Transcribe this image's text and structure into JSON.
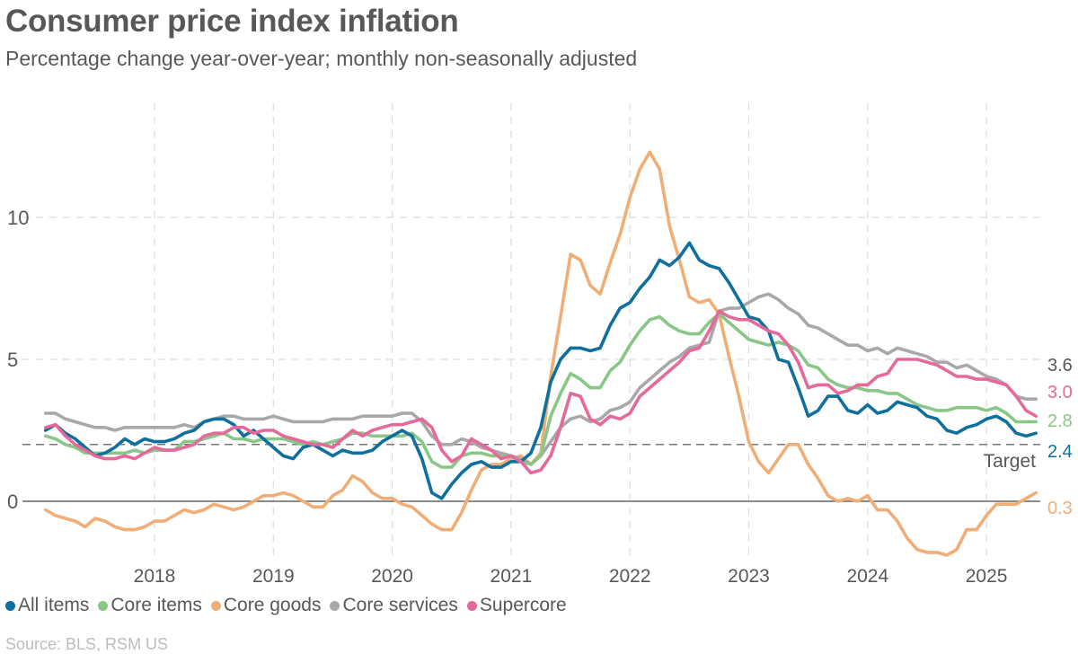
{
  "title": "Consumer price index inflation",
  "subtitle": "Percentage change year-over-year; monthly non-seasonally adjusted",
  "source": "Source: BLS, RSM US",
  "chart_data": {
    "type": "line",
    "title": "Consumer price index inflation",
    "subtitle": "Percentage change year-over-year; monthly non-seasonally adjusted",
    "xlabel": "",
    "ylabel": "",
    "ylim": [
      -2.3,
      13
    ],
    "y_ticks": [
      "0",
      "5",
      "10"
    ],
    "x_ticks": [
      "2018",
      "2019",
      "2020",
      "2021",
      "2022",
      "2023",
      "2024",
      "2025"
    ],
    "grid": "dashed",
    "legend": "bottom",
    "target": {
      "label": "Target",
      "value": 2
    },
    "x": [
      "2017-01",
      "2017-02",
      "2017-03",
      "2017-04",
      "2017-05",
      "2017-06",
      "2017-07",
      "2017-08",
      "2017-09",
      "2017-10",
      "2017-11",
      "2017-12",
      "2018-01",
      "2018-02",
      "2018-03",
      "2018-04",
      "2018-05",
      "2018-06",
      "2018-07",
      "2018-08",
      "2018-09",
      "2018-10",
      "2018-11",
      "2018-12",
      "2019-01",
      "2019-02",
      "2019-03",
      "2019-04",
      "2019-05",
      "2019-06",
      "2019-07",
      "2019-08",
      "2019-09",
      "2019-10",
      "2019-11",
      "2019-12",
      "2020-01",
      "2020-02",
      "2020-03",
      "2020-04",
      "2020-05",
      "2020-06",
      "2020-07",
      "2020-08",
      "2020-09",
      "2020-10",
      "2020-11",
      "2020-12",
      "2021-01",
      "2021-02",
      "2021-03",
      "2021-04",
      "2021-05",
      "2021-06",
      "2021-07",
      "2021-08",
      "2021-09",
      "2021-10",
      "2021-11",
      "2021-12",
      "2022-01",
      "2022-02",
      "2022-03",
      "2022-04",
      "2022-05",
      "2022-06",
      "2022-07",
      "2022-08",
      "2022-09",
      "2022-10",
      "2022-11",
      "2022-12",
      "2023-01",
      "2023-02",
      "2023-03",
      "2023-04",
      "2023-05",
      "2023-06",
      "2023-07",
      "2023-08",
      "2023-09",
      "2023-10",
      "2023-11",
      "2023-12",
      "2024-01",
      "2024-02",
      "2024-03",
      "2024-04",
      "2024-05",
      "2024-06",
      "2024-07",
      "2024-08",
      "2024-09",
      "2024-10",
      "2024-11",
      "2024-12",
      "2025-01",
      "2025-02",
      "2025-03",
      "2025-04",
      "2025-05"
    ],
    "series": [
      {
        "name": "All items",
        "color": "#0f6f9d",
        "end_label": "2.4",
        "values": [
          2.5,
          2.7,
          2.4,
          2.2,
          1.9,
          1.6,
          1.7,
          1.9,
          2.2,
          2.0,
          2.2,
          2.1,
          2.1,
          2.2,
          2.4,
          2.5,
          2.8,
          2.9,
          2.9,
          2.7,
          2.3,
          2.5,
          2.2,
          1.9,
          1.6,
          1.5,
          1.9,
          2.0,
          1.8,
          1.6,
          1.8,
          1.7,
          1.7,
          1.8,
          2.1,
          2.3,
          2.5,
          2.3,
          1.5,
          0.3,
          0.1,
          0.6,
          1.0,
          1.3,
          1.4,
          1.2,
          1.2,
          1.4,
          1.4,
          1.7,
          2.6,
          4.2,
          5.0,
          5.4,
          5.4,
          5.3,
          5.4,
          6.2,
          6.8,
          7.0,
          7.5,
          7.9,
          8.5,
          8.3,
          8.6,
          9.1,
          8.5,
          8.3,
          8.2,
          7.7,
          7.1,
          6.5,
          6.4,
          6.0,
          5.0,
          4.9,
          4.0,
          3.0,
          3.2,
          3.7,
          3.7,
          3.2,
          3.1,
          3.4,
          3.1,
          3.2,
          3.5,
          3.4,
          3.3,
          3.0,
          2.9,
          2.5,
          2.4,
          2.6,
          2.7,
          2.9,
          3.0,
          2.8,
          2.4,
          2.3,
          2.4
        ]
      },
      {
        "name": "Core items",
        "color": "#88c786",
        "end_label": "2.8",
        "values": [
          2.3,
          2.2,
          2.0,
          1.9,
          1.7,
          1.7,
          1.7,
          1.7,
          1.7,
          1.8,
          1.7,
          1.8,
          1.8,
          1.8,
          2.1,
          2.1,
          2.2,
          2.3,
          2.4,
          2.2,
          2.2,
          2.1,
          2.2,
          2.2,
          2.2,
          2.1,
          2.0,
          2.1,
          2.0,
          2.1,
          2.2,
          2.4,
          2.4,
          2.3,
          2.3,
          2.3,
          2.3,
          2.4,
          2.1,
          1.4,
          1.2,
          1.2,
          1.6,
          1.7,
          1.7,
          1.6,
          1.6,
          1.6,
          1.4,
          1.3,
          1.6,
          3.0,
          3.8,
          4.5,
          4.3,
          4.0,
          4.0,
          4.6,
          4.9,
          5.5,
          6.0,
          6.4,
          6.5,
          6.2,
          6.0,
          5.9,
          5.9,
          6.3,
          6.6,
          6.3,
          6.0,
          5.7,
          5.6,
          5.5,
          5.6,
          5.5,
          5.3,
          4.8,
          4.7,
          4.3,
          4.1,
          4.0,
          4.0,
          3.9,
          3.9,
          3.8,
          3.8,
          3.6,
          3.4,
          3.3,
          3.2,
          3.2,
          3.3,
          3.3,
          3.3,
          3.2,
          3.3,
          3.1,
          2.8,
          2.8,
          2.8
        ]
      },
      {
        "name": "Core goods",
        "color": "#f0ae76",
        "end_label": "0.3",
        "values": [
          -0.3,
          -0.5,
          -0.6,
          -0.7,
          -0.9,
          -0.6,
          -0.7,
          -0.9,
          -1.0,
          -1.0,
          -0.9,
          -0.7,
          -0.7,
          -0.5,
          -0.3,
          -0.4,
          -0.3,
          -0.1,
          -0.2,
          -0.3,
          -0.2,
          0.0,
          0.2,
          0.2,
          0.3,
          0.2,
          0.0,
          -0.2,
          -0.2,
          0.2,
          0.4,
          0.9,
          0.7,
          0.3,
          0.1,
          0.1,
          -0.1,
          -0.2,
          -0.5,
          -0.8,
          -1.0,
          -1.0,
          -0.4,
          0.4,
          1.1,
          1.3,
          1.3,
          1.5,
          1.6,
          1.3,
          1.7,
          4.4,
          6.5,
          8.7,
          8.5,
          7.6,
          7.3,
          8.4,
          9.4,
          10.7,
          11.7,
          12.3,
          11.7,
          9.7,
          8.5,
          7.2,
          7.0,
          7.1,
          6.6,
          5.1,
          3.7,
          2.1,
          1.4,
          1.0,
          1.5,
          2.0,
          2.0,
          1.3,
          0.8,
          0.2,
          0.0,
          0.1,
          0.0,
          0.2,
          -0.3,
          -0.3,
          -0.7,
          -1.3,
          -1.7,
          -1.8,
          -1.8,
          -1.9,
          -1.7,
          -1.0,
          -1.0,
          -0.5,
          -0.1,
          -0.1,
          -0.1,
          0.1,
          0.3
        ]
      },
      {
        "name": "Core services",
        "color": "#a9a7a9",
        "end_label": "3.6",
        "values": [
          3.1,
          3.1,
          2.9,
          2.8,
          2.7,
          2.6,
          2.6,
          2.5,
          2.6,
          2.6,
          2.6,
          2.6,
          2.6,
          2.6,
          2.7,
          2.6,
          2.8,
          2.9,
          3.0,
          3.0,
          2.9,
          2.9,
          2.9,
          3.0,
          2.9,
          2.8,
          2.8,
          2.8,
          2.8,
          2.9,
          2.9,
          2.9,
          3.0,
          3.0,
          3.0,
          3.0,
          3.1,
          3.1,
          2.8,
          2.3,
          2.0,
          2.0,
          2.2,
          2.1,
          1.9,
          1.8,
          1.7,
          1.6,
          1.5,
          1.3,
          1.6,
          2.1,
          2.6,
          2.9,
          3.0,
          2.8,
          2.9,
          3.2,
          3.3,
          3.5,
          4.0,
          4.3,
          4.6,
          4.9,
          5.1,
          5.4,
          5.5,
          5.6,
          6.7,
          6.8,
          6.8,
          7.0,
          7.2,
          7.3,
          7.1,
          6.8,
          6.6,
          6.2,
          6.1,
          5.9,
          5.7,
          5.5,
          5.5,
          5.3,
          5.4,
          5.2,
          5.4,
          5.3,
          5.2,
          5.1,
          4.9,
          4.9,
          4.7,
          4.8,
          4.6,
          4.4,
          4.3,
          4.1,
          3.7,
          3.6,
          3.6
        ]
      },
      {
        "name": "Supercore",
        "color": "#e5699b",
        "end_label": "3.0",
        "values": [
          2.6,
          2.7,
          2.3,
          2.0,
          1.8,
          1.6,
          1.5,
          1.5,
          1.6,
          1.5,
          1.7,
          1.9,
          1.8,
          1.8,
          1.9,
          2.0,
          2.3,
          2.4,
          2.4,
          2.6,
          2.6,
          2.4,
          2.5,
          2.5,
          2.3,
          2.2,
          2.1,
          2.0,
          2.0,
          1.9,
          2.2,
          2.5,
          2.3,
          2.5,
          2.6,
          2.7,
          2.7,
          2.8,
          2.9,
          2.6,
          1.8,
          1.4,
          1.6,
          2.2,
          2.0,
          1.8,
          1.5,
          1.6,
          1.4,
          1.0,
          1.1,
          1.6,
          2.6,
          3.8,
          3.7,
          2.9,
          2.7,
          3.0,
          2.9,
          3.1,
          3.7,
          4.0,
          4.3,
          4.6,
          4.9,
          5.3,
          5.4,
          6.0,
          6.7,
          6.5,
          6.4,
          6.4,
          6.2,
          6.0,
          5.9,
          5.5,
          4.9,
          4.0,
          4.1,
          4.1,
          3.8,
          3.9,
          4.1,
          4.1,
          4.4,
          4.5,
          5.0,
          5.0,
          5.0,
          4.9,
          4.8,
          4.6,
          4.4,
          4.4,
          4.3,
          4.3,
          4.2,
          4.1,
          3.7,
          3.2,
          3.0
        ]
      }
    ]
  }
}
